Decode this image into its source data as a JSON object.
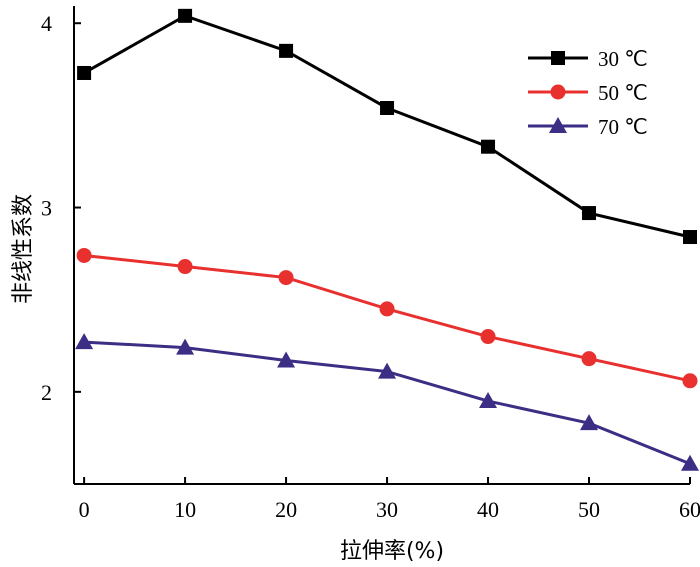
{
  "chart_data": {
    "type": "line",
    "title": "",
    "xlabel": "拉伸率(%)",
    "ylabel": "非线性系数",
    "x": [
      0,
      10,
      20,
      30,
      40,
      50,
      60
    ],
    "x_tick_labels": [
      "0",
      "10",
      "20",
      "30",
      "40",
      "50",
      "60"
    ],
    "y_ticks": [
      2,
      3,
      4
    ],
    "y_tick_labels": [
      "2",
      "3",
      "4"
    ],
    "xlim": [
      -1,
      60
    ],
    "ylim": [
      1.5,
      4.05
    ],
    "grid": false,
    "legend_position": "top-right",
    "series": [
      {
        "name": "30 ℃",
        "color": "#000000",
        "marker": "square",
        "values": [
          3.73,
          4.04,
          3.85,
          3.54,
          3.33,
          2.97,
          2.84
        ]
      },
      {
        "name": "50 ℃",
        "color": "#e8312f",
        "marker": "circle",
        "values": [
          2.74,
          2.68,
          2.62,
          2.45,
          2.3,
          2.18,
          2.06
        ]
      },
      {
        "name": "70 ℃",
        "color": "#3c2d85",
        "marker": "triangle",
        "values": [
          2.27,
          2.24,
          2.17,
          2.11,
          1.95,
          1.83,
          1.61
        ]
      }
    ]
  }
}
